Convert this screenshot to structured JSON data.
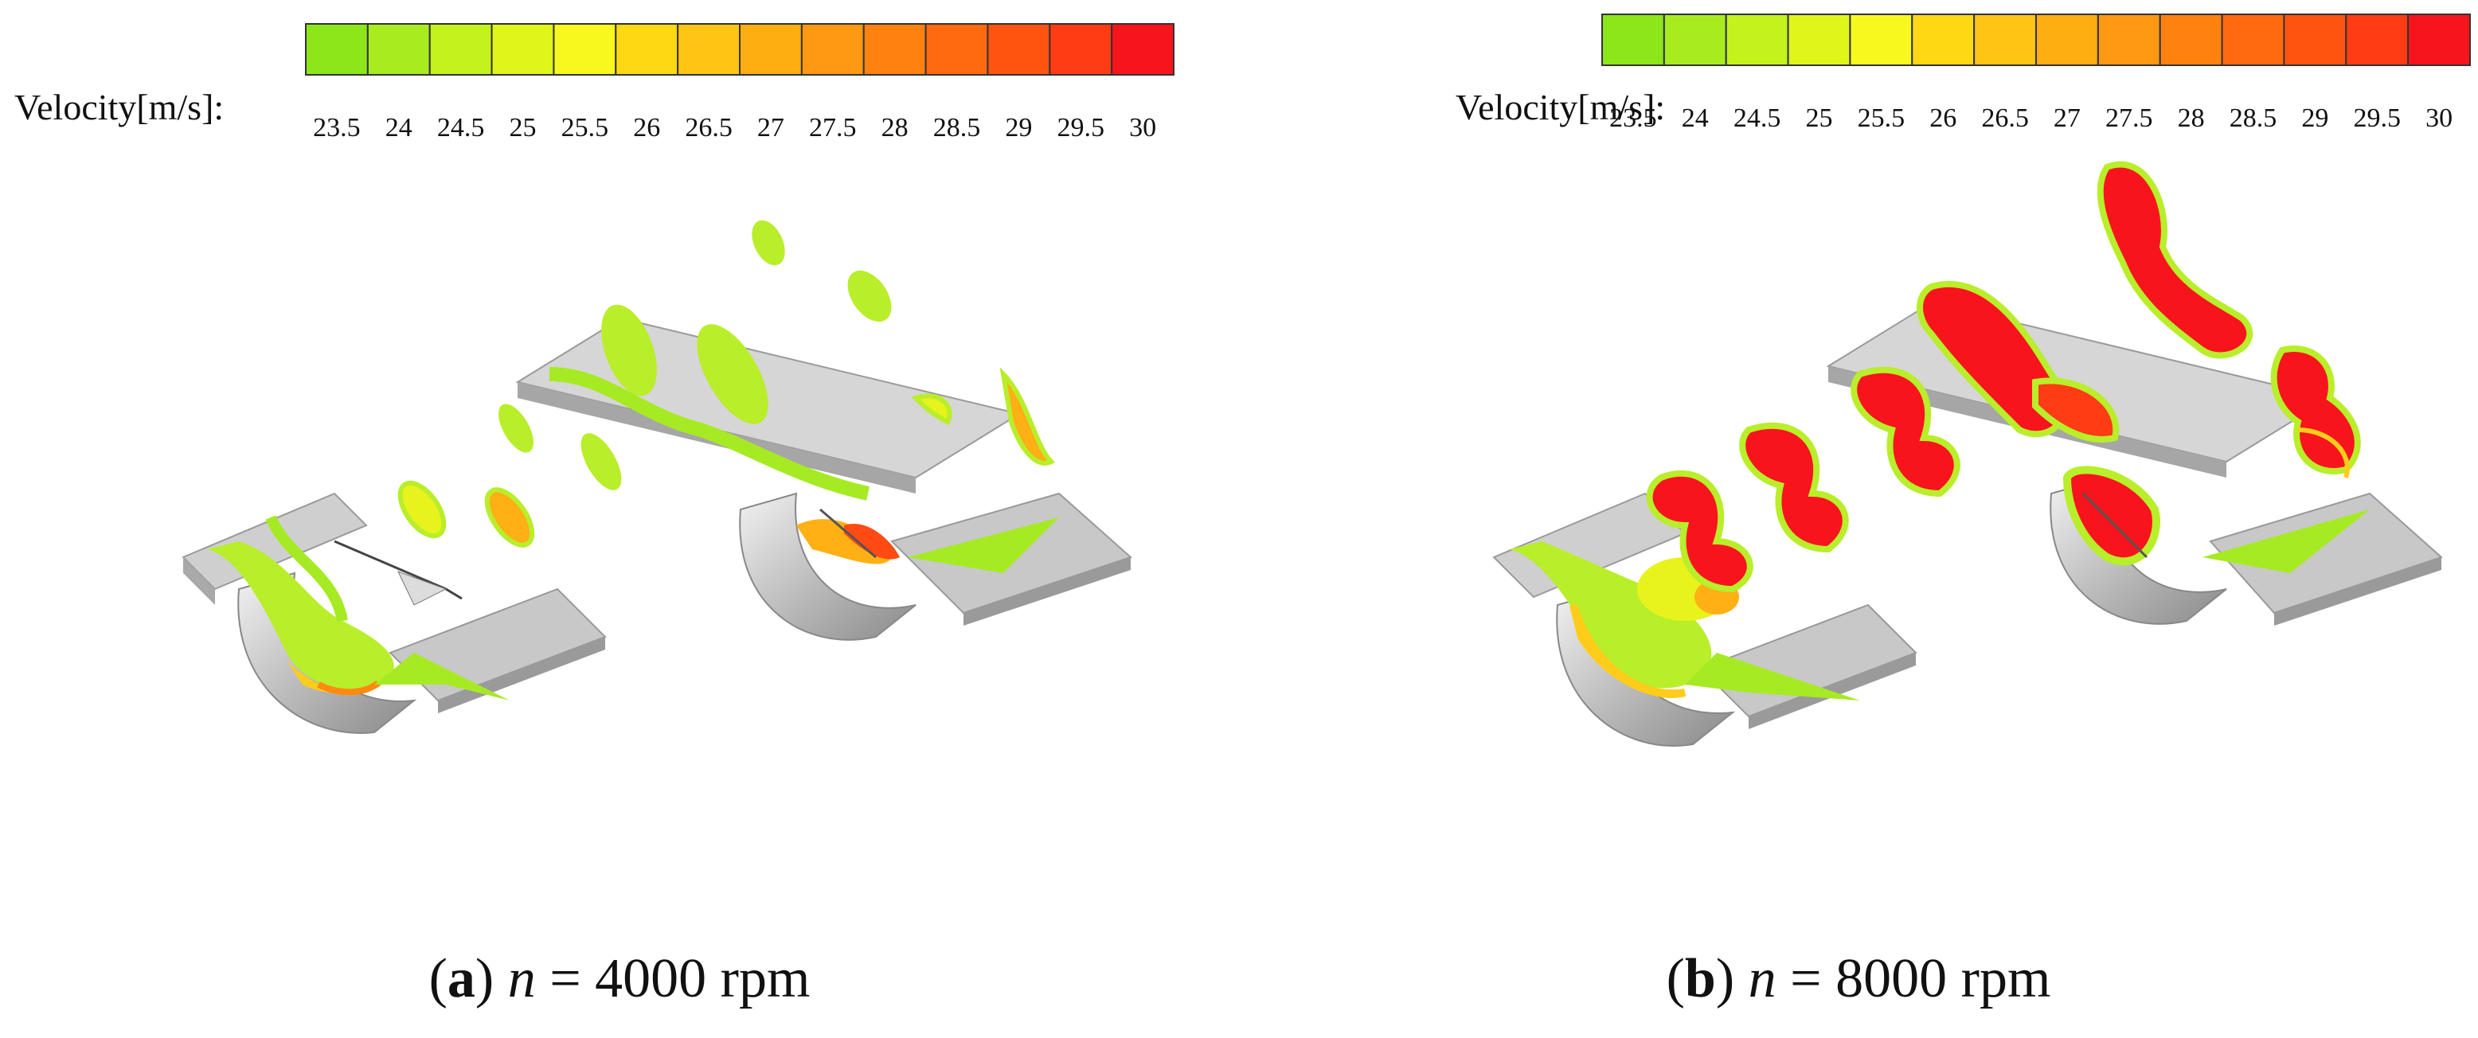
{
  "legend": {
    "label": "Velocity[m/s]:",
    "ticks": [
      "23.5",
      "24",
      "24.5",
      "25",
      "25.5",
      "26",
      "26.5",
      "27",
      "27.5",
      "28",
      "28.5",
      "29",
      "29.5",
      "30"
    ],
    "colors": [
      "#8ce61a",
      "#a8ec1f",
      "#c4f21c",
      "#e0f61a",
      "#f8f81e",
      "#ffd814",
      "#ffc414",
      "#ffae12",
      "#ff9812",
      "#ff8210",
      "#ff6a10",
      "#ff5410",
      "#ff3c14",
      "#f8141c"
    ]
  },
  "panels": [
    {
      "letter": "a",
      "variable": "n",
      "value": "= 4000 rpm"
    },
    {
      "letter": "b",
      "variable": "n",
      "value": "= 8000 rpm"
    }
  ]
}
